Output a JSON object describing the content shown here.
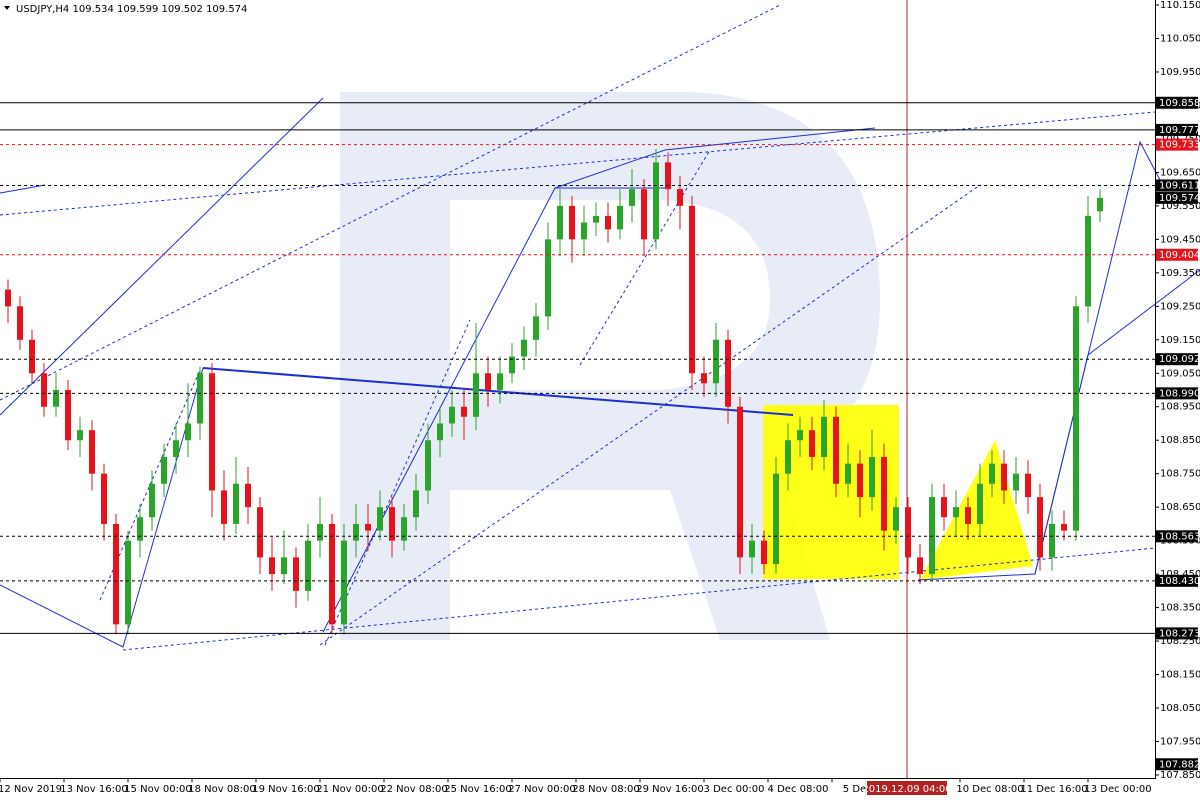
{
  "chart_data": {
    "type": "candlestick",
    "title": "USDJPY,H4  109.534 109.599 109.502 109.574",
    "up_color": "#2aa52a",
    "down_color": "#e5141c",
    "ylim": [
      107.841,
      110.165
    ],
    "yticks": [
      {
        "value": 110.15,
        "label": "110.150"
      },
      {
        "value": 110.05,
        "label": "110.050"
      },
      {
        "value": 109.95,
        "label": "109.950"
      },
      {
        "value": 109.85,
        "label": "109.850"
      },
      {
        "value": 109.75,
        "label": "109.750"
      },
      {
        "value": 109.65,
        "label": "109.650"
      },
      {
        "value": 109.55,
        "label": "109.550"
      },
      {
        "value": 109.45,
        "label": "109.450"
      },
      {
        "value": 109.35,
        "label": "109.350"
      },
      {
        "value": 109.25,
        "label": "109.250"
      },
      {
        "value": 109.15,
        "label": "109.150"
      },
      {
        "value": 109.05,
        "label": "109.050"
      },
      {
        "value": 108.95,
        "label": "108.950"
      },
      {
        "value": 108.85,
        "label": "108.850"
      },
      {
        "value": 108.75,
        "label": "108.750"
      },
      {
        "value": 108.65,
        "label": "108.650"
      },
      {
        "value": 108.55,
        "label": "108.550"
      },
      {
        "value": 108.45,
        "label": "108.450"
      },
      {
        "value": 108.35,
        "label": "108.350"
      },
      {
        "value": 108.25,
        "label": "108.250"
      },
      {
        "value": 108.15,
        "label": "108.150"
      },
      {
        "value": 108.05,
        "label": "108.050"
      },
      {
        "value": 107.95,
        "label": "107.950"
      },
      {
        "value": 107.85,
        "label": "107.850"
      }
    ],
    "x_labels": [
      "12 Nov 2019",
      "13 Nov 16:00",
      "15 Nov 00:00",
      "18 Nov 08:00",
      "19 Nov 16:00",
      "21 Nov 00:00",
      "22 Nov 08:00",
      "25 Nov 16:00",
      "27 Nov 00:00",
      "28 Nov 08:00",
      "29 Nov 16:00",
      "3 Dec 00:00",
      "4 Dec 08:00",
      "5 Dec 1",
      null,
      "10 Dec 08:00",
      "11 Dec 16:00",
      "13 Dec 00:00"
    ],
    "cursor_time": "2019.12.09 04:00",
    "levels": [
      {
        "value": 109.858,
        "label": "109.858",
        "color": "#000000",
        "style": "solid"
      },
      {
        "value": 109.777,
        "label": "109.777",
        "color": "#000000",
        "style": "solid"
      },
      {
        "value": 109.733,
        "label": "109.733",
        "color": "#e5141c",
        "style": "dashed"
      },
      {
        "value": 109.611,
        "label": "109.611",
        "color": "#000000",
        "style": "dashed"
      },
      {
        "value": 109.574,
        "label": "109.574",
        "color": "#000000",
        "style": "none"
      },
      {
        "value": 109.404,
        "label": "109.404",
        "color": "#e5141c",
        "style": "dashed"
      },
      {
        "value": 109.092,
        "label": "109.092",
        "color": "#000000",
        "style": "dashed"
      },
      {
        "value": 108.99,
        "label": "108.990",
        "color": "#000000",
        "style": "dashed"
      },
      {
        "value": 108.563,
        "label": "108.563",
        "color": "#000000",
        "style": "dashed"
      },
      {
        "value": 108.43,
        "label": "108.430",
        "color": "#000000",
        "style": "dashed"
      },
      {
        "value": 108.273,
        "label": "108.273",
        "color": "#000000",
        "style": "solid"
      },
      {
        "value": 107.882,
        "label": "107.882",
        "color": "#000000",
        "style": "none"
      }
    ],
    "candles": [
      [
        109.3,
        109.33,
        109.2,
        109.25
      ],
      [
        109.25,
        109.28,
        109.12,
        109.15
      ],
      [
        109.15,
        109.18,
        109.02,
        109.05
      ],
      [
        109.05,
        109.08,
        108.92,
        108.95
      ],
      [
        108.95,
        109.05,
        108.92,
        109.0
      ],
      [
        109.0,
        109.03,
        108.82,
        108.85
      ],
      [
        108.85,
        108.92,
        108.8,
        108.88
      ],
      [
        108.88,
        108.91,
        108.7,
        108.75
      ],
      [
        108.75,
        108.78,
        108.55,
        108.6
      ],
      [
        108.6,
        108.63,
        108.27,
        108.3
      ],
      [
        108.3,
        108.58,
        108.27,
        108.55
      ],
      [
        108.55,
        108.66,
        108.5,
        108.62
      ],
      [
        108.62,
        108.76,
        108.58,
        108.72
      ],
      [
        108.72,
        108.84,
        108.68,
        108.8
      ],
      [
        108.8,
        108.9,
        108.75,
        108.85
      ],
      [
        108.85,
        109.02,
        108.8,
        108.9
      ],
      [
        108.9,
        109.07,
        108.85,
        109.05
      ],
      [
        109.05,
        109.08,
        108.62,
        108.7
      ],
      [
        108.7,
        108.76,
        108.55,
        108.6
      ],
      [
        108.6,
        108.8,
        108.57,
        108.72
      ],
      [
        108.72,
        108.77,
        108.6,
        108.65
      ],
      [
        108.65,
        108.68,
        108.45,
        108.5
      ],
      [
        108.5,
        108.56,
        108.4,
        108.45
      ],
      [
        108.45,
        108.58,
        108.42,
        108.5
      ],
      [
        108.5,
        108.53,
        108.35,
        108.4
      ],
      [
        108.4,
        108.6,
        108.37,
        108.55
      ],
      [
        108.55,
        108.68,
        108.5,
        108.6
      ],
      [
        108.6,
        108.63,
        108.27,
        108.3
      ],
      [
        108.3,
        108.6,
        108.27,
        108.55
      ],
      [
        108.55,
        108.66,
        108.5,
        108.6
      ],
      [
        108.6,
        108.66,
        108.52,
        108.58
      ],
      [
        108.58,
        108.7,
        108.55,
        108.65
      ],
      [
        108.65,
        108.68,
        108.5,
        108.55
      ],
      [
        108.55,
        108.66,
        108.52,
        108.62
      ],
      [
        108.62,
        108.75,
        108.58,
        108.7
      ],
      [
        108.7,
        108.9,
        108.66,
        108.85
      ],
      [
        108.85,
        108.95,
        108.8,
        108.9
      ],
      [
        108.9,
        109.0,
        108.86,
        108.95
      ],
      [
        108.95,
        109.0,
        108.85,
        108.92
      ],
      [
        108.92,
        109.2,
        108.88,
        109.05
      ],
      [
        109.05,
        109.1,
        108.95,
        109.0
      ],
      [
        109.0,
        109.1,
        108.96,
        109.05
      ],
      [
        109.05,
        109.14,
        109.02,
        109.1
      ],
      [
        109.1,
        109.19,
        109.06,
        109.15
      ],
      [
        109.15,
        109.26,
        109.1,
        109.22
      ],
      [
        109.22,
        109.5,
        109.18,
        109.45
      ],
      [
        109.45,
        109.6,
        109.4,
        109.55
      ],
      [
        109.55,
        109.58,
        109.38,
        109.45
      ],
      [
        109.45,
        109.55,
        109.4,
        109.5
      ],
      [
        109.5,
        109.56,
        109.46,
        109.52
      ],
      [
        109.52,
        109.56,
        109.44,
        109.48
      ],
      [
        109.48,
        109.6,
        109.45,
        109.55
      ],
      [
        109.55,
        109.66,
        109.5,
        109.6
      ],
      [
        109.6,
        109.63,
        109.4,
        109.45
      ],
      [
        109.45,
        109.72,
        109.42,
        109.68
      ],
      [
        109.68,
        109.71,
        109.55,
        109.6
      ],
      [
        109.6,
        109.64,
        109.48,
        109.55
      ],
      [
        109.55,
        109.58,
        109.0,
        109.05
      ],
      [
        109.05,
        109.1,
        108.98,
        109.02
      ],
      [
        109.02,
        109.2,
        108.98,
        109.15
      ],
      [
        109.15,
        109.18,
        108.9,
        108.95
      ],
      [
        108.95,
        108.98,
        108.45,
        108.5
      ],
      [
        108.5,
        108.6,
        108.45,
        108.55
      ],
      [
        108.55,
        108.58,
        108.45,
        108.48
      ],
      [
        108.48,
        108.8,
        108.45,
        108.75
      ],
      [
        108.75,
        108.9,
        108.7,
        108.85
      ],
      [
        108.85,
        108.92,
        108.8,
        108.88
      ],
      [
        108.88,
        108.92,
        108.76,
        108.8
      ],
      [
        108.8,
        108.97,
        108.76,
        108.92
      ],
      [
        108.92,
        108.95,
        108.68,
        108.72
      ],
      [
        108.72,
        108.84,
        108.68,
        108.78
      ],
      [
        108.78,
        108.82,
        108.62,
        108.68
      ],
      [
        108.68,
        108.88,
        108.64,
        108.8
      ],
      [
        108.8,
        108.84,
        108.52,
        108.58
      ],
      [
        108.58,
        108.68,
        108.54,
        108.65
      ],
      [
        108.65,
        108.68,
        108.45,
        108.5
      ],
      [
        108.5,
        108.54,
        108.42,
        108.45
      ],
      [
        108.45,
        108.72,
        108.43,
        108.68
      ],
      [
        108.68,
        108.72,
        108.58,
        108.62
      ],
      [
        108.62,
        108.7,
        108.56,
        108.65
      ],
      [
        108.65,
        108.68,
        108.55,
        108.6
      ],
      [
        108.6,
        108.78,
        108.56,
        108.72
      ],
      [
        108.72,
        108.82,
        108.68,
        108.78
      ],
      [
        108.78,
        108.82,
        108.66,
        108.7
      ],
      [
        108.7,
        108.8,
        108.66,
        108.75
      ],
      [
        108.75,
        108.79,
        108.63,
        108.68
      ],
      [
        108.68,
        108.72,
        108.46,
        108.5
      ],
      [
        108.5,
        108.64,
        108.46,
        108.6
      ],
      [
        108.6,
        108.64,
        108.55,
        108.58
      ],
      [
        108.58,
        109.28,
        108.55,
        109.25
      ],
      [
        109.25,
        109.58,
        109.2,
        109.52
      ],
      [
        109.534,
        109.599,
        109.502,
        109.574
      ]
    ]
  }
}
